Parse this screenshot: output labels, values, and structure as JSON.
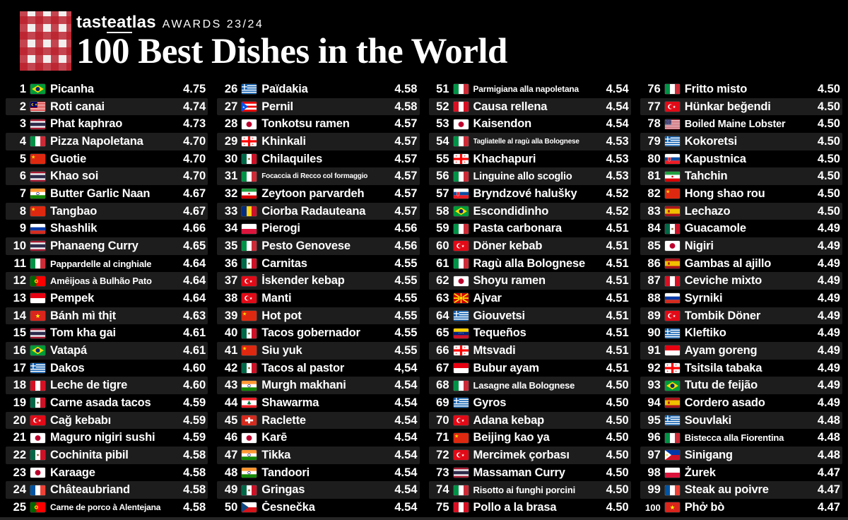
{
  "header": {
    "brand": {
      "pre": "tast",
      "eat": "eat",
      "post": "las"
    },
    "awards_label": "AWARDS 23/24",
    "title": "100 Best Dishes in the World"
  },
  "colors": {
    "background": "#000000",
    "row_stripe": "#1d1d1d",
    "text": "#ffffff",
    "logo_red": "#ba202c"
  },
  "list": [
    {
      "rank": "1",
      "flag": "brazil",
      "name": "Picanha",
      "score": "4.75"
    },
    {
      "rank": "2",
      "flag": "malaysia",
      "name": "Roti canai",
      "score": "4.74"
    },
    {
      "rank": "3",
      "flag": "thailand",
      "name": "Phat kaphrao",
      "score": "4.73"
    },
    {
      "rank": "4",
      "flag": "italy",
      "name": "Pizza Napoletana",
      "score": "4.70"
    },
    {
      "rank": "5",
      "flag": "china",
      "name": "Guotie",
      "score": "4.70"
    },
    {
      "rank": "6",
      "flag": "thailand",
      "name": "Khao soi",
      "score": "4.70"
    },
    {
      "rank": "7",
      "flag": "india",
      "name": "Butter Garlic Naan",
      "score": "4.67"
    },
    {
      "rank": "8",
      "flag": "china",
      "name": "Tangbao",
      "score": "4.67"
    },
    {
      "rank": "9",
      "flag": "russia",
      "name": "Shashlik",
      "score": "4.66"
    },
    {
      "rank": "10",
      "flag": "thailand",
      "name": "Phanaeng Curry",
      "score": "4.65"
    },
    {
      "rank": "11",
      "flag": "italy",
      "name": "Pappardelle al cinghiale",
      "score": "4.64"
    },
    {
      "rank": "12",
      "flag": "portugal",
      "name": "Amêijoas à Bulhão Pato",
      "score": "4.64"
    },
    {
      "rank": "13",
      "flag": "indonesia",
      "name": "Pempek",
      "score": "4.64"
    },
    {
      "rank": "14",
      "flag": "vietnam",
      "name": "Bánh mì thịt",
      "score": "4.63"
    },
    {
      "rank": "15",
      "flag": "thailand",
      "name": "Tom kha gai",
      "score": "4.61"
    },
    {
      "rank": "16",
      "flag": "brazil",
      "name": "Vatapá",
      "score": "4.61"
    },
    {
      "rank": "17",
      "flag": "greece",
      "name": "Dakos",
      "score": "4.60"
    },
    {
      "rank": "18",
      "flag": "peru",
      "name": "Leche de tigre",
      "score": "4.60"
    },
    {
      "rank": "19",
      "flag": "mexico",
      "name": "Carne asada tacos",
      "score": "4.59"
    },
    {
      "rank": "20",
      "flag": "turkey",
      "name": "Cağ kebabı",
      "score": "4.59"
    },
    {
      "rank": "21",
      "flag": "japan",
      "name": "Maguro nigiri sushi",
      "score": "4.59"
    },
    {
      "rank": "22",
      "flag": "mexico",
      "name": "Cochinita pibil",
      "score": "4.58"
    },
    {
      "rank": "23",
      "flag": "japan",
      "name": "Karaage",
      "score": "4.58"
    },
    {
      "rank": "24",
      "flag": "france",
      "name": "Châteaubriand",
      "score": "4.58"
    },
    {
      "rank": "25",
      "flag": "portugal",
      "name": "Carne de porco à Alentejana",
      "score": "4.58"
    },
    {
      "rank": "26",
      "flag": "greece",
      "name": "Païdakia",
      "score": "4.58"
    },
    {
      "rank": "27",
      "flag": "puerto-rico",
      "name": "Pernil",
      "score": "4.58"
    },
    {
      "rank": "28",
      "flag": "japan",
      "name": "Tonkotsu ramen",
      "score": "4.57"
    },
    {
      "rank": "29",
      "flag": "georgia",
      "name": "Khinkali",
      "score": "4.57"
    },
    {
      "rank": "30",
      "flag": "mexico",
      "name": "Chilaquiles",
      "score": "4.57"
    },
    {
      "rank": "31",
      "flag": "italy",
      "name": "Focaccia di Recco col formaggio",
      "score": "4.57"
    },
    {
      "rank": "32",
      "flag": "iran",
      "name": "Zeytoon parvardeh",
      "score": "4.57"
    },
    {
      "rank": "33",
      "flag": "romania",
      "name": "Ciorba Radauteana",
      "score": "4.57"
    },
    {
      "rank": "34",
      "flag": "poland",
      "name": "Pierogi",
      "score": "4.56"
    },
    {
      "rank": "35",
      "flag": "italy",
      "name": "Pesto Genovese",
      "score": "4.56"
    },
    {
      "rank": "36",
      "flag": "mexico",
      "name": "Carnitas",
      "score": "4.55"
    },
    {
      "rank": "37",
      "flag": "turkey",
      "name": "İskender kebap",
      "score": "4.55"
    },
    {
      "rank": "38",
      "flag": "turkey",
      "name": "Manti",
      "score": "4.55"
    },
    {
      "rank": "39",
      "flag": "china",
      "name": "Hot pot",
      "score": "4.55"
    },
    {
      "rank": "40",
      "flag": "mexico",
      "name": "Tacos gobernador",
      "score": "4.55"
    },
    {
      "rank": "41",
      "flag": "china",
      "name": "Siu yuk",
      "score": "4.55"
    },
    {
      "rank": "42",
      "flag": "mexico",
      "name": "Tacos al pastor",
      "score": "4,54"
    },
    {
      "rank": "43",
      "flag": "india",
      "name": "Murgh makhani",
      "score": "4.54"
    },
    {
      "rank": "44",
      "flag": "lebanon",
      "name": "Shawarma",
      "score": "4.54"
    },
    {
      "rank": "45",
      "flag": "switzerland",
      "name": "Raclette",
      "score": "4.54"
    },
    {
      "rank": "46",
      "flag": "japan",
      "name": "Karē",
      "score": "4.54"
    },
    {
      "rank": "47",
      "flag": "india",
      "name": "Tikka",
      "score": "4.54"
    },
    {
      "rank": "48",
      "flag": "india",
      "name": "Tandoori",
      "score": "4.54"
    },
    {
      "rank": "49",
      "flag": "mexico",
      "name": "Gringas",
      "score": "4.54"
    },
    {
      "rank": "50",
      "flag": "czechia",
      "name": "Česnečka",
      "score": "4.54"
    },
    {
      "rank": "51",
      "flag": "italy",
      "name": "Parmigiana alla napoletana",
      "score": "4.54"
    },
    {
      "rank": "52",
      "flag": "peru",
      "name": "Causa rellena",
      "score": "4.54"
    },
    {
      "rank": "53",
      "flag": "japan",
      "name": "Kaisendon",
      "score": "4.54"
    },
    {
      "rank": "54",
      "flag": "italy",
      "name": "Tagliatelle al ragù alla Bolognese",
      "score": "4.53"
    },
    {
      "rank": "55",
      "flag": "georgia",
      "name": "Khachapuri",
      "score": "4.53"
    },
    {
      "rank": "56",
      "flag": "italy",
      "name": "Linguine allo scoglio",
      "score": "4.53"
    },
    {
      "rank": "57",
      "flag": "slovakia",
      "name": "Bryndzové halušky",
      "score": "4.52"
    },
    {
      "rank": "58",
      "flag": "brazil",
      "name": "Escondidinho",
      "score": "4.52"
    },
    {
      "rank": "59",
      "flag": "italy",
      "name": "Pasta carbonara",
      "score": "4.51"
    },
    {
      "rank": "60",
      "flag": "turkey",
      "name": "Döner kebab",
      "score": "4.51"
    },
    {
      "rank": "61",
      "flag": "italy",
      "name": "Ragù alla Bolognese",
      "score": "4.51"
    },
    {
      "rank": "62",
      "flag": "japan",
      "name": "Shoyu ramen",
      "score": "4.51"
    },
    {
      "rank": "63",
      "flag": "north-macedonia",
      "name": "Ajvar",
      "score": "4.51"
    },
    {
      "rank": "64",
      "flag": "greece",
      "name": "Giouvetsi",
      "score": "4.51"
    },
    {
      "rank": "65",
      "flag": "venezuela",
      "name": "Tequeños",
      "score": "4.51"
    },
    {
      "rank": "66",
      "flag": "georgia",
      "name": "Mtsvadi",
      "score": "4.51"
    },
    {
      "rank": "67",
      "flag": "indonesia",
      "name": "Bubur ayam",
      "score": "4.51"
    },
    {
      "rank": "68",
      "flag": "italy",
      "name": "Lasagne alla Bolognese",
      "score": "4.50"
    },
    {
      "rank": "69",
      "flag": "greece",
      "name": "Gyros",
      "score": "4.50"
    },
    {
      "rank": "70",
      "flag": "turkey",
      "name": "Adana kebap",
      "score": "4.50"
    },
    {
      "rank": "71",
      "flag": "china",
      "name": "Beijing kao ya",
      "score": "4.50"
    },
    {
      "rank": "72",
      "flag": "turkey",
      "name": "Mercimek çorbası",
      "score": "4.50"
    },
    {
      "rank": "73",
      "flag": "thailand",
      "name": "Massaman Curry",
      "score": "4.50"
    },
    {
      "rank": "74",
      "flag": "italy",
      "name": "Risotto ai funghi porcini",
      "score": "4.50"
    },
    {
      "rank": "75",
      "flag": "peru",
      "name": "Pollo a la brasa",
      "score": "4.50"
    },
    {
      "rank": "76",
      "flag": "italy",
      "name": "Fritto misto",
      "score": "4.50"
    },
    {
      "rank": "77",
      "flag": "turkey",
      "name": "Hünkar beğendi",
      "score": "4.50"
    },
    {
      "rank": "78",
      "flag": "usa",
      "name": "Boiled Maine Lobster",
      "score": "4.50"
    },
    {
      "rank": "79",
      "flag": "greece",
      "name": "Kokoretsi",
      "score": "4.50"
    },
    {
      "rank": "80",
      "flag": "slovakia",
      "name": "Kapustnica",
      "score": "4.50"
    },
    {
      "rank": "81",
      "flag": "iran",
      "name": "Tahchin",
      "score": "4.50"
    },
    {
      "rank": "82",
      "flag": "china",
      "name": "Hong shao rou",
      "score": "4.50"
    },
    {
      "rank": "83",
      "flag": "spain",
      "name": "Lechazo",
      "score": "4.50"
    },
    {
      "rank": "84",
      "flag": "mexico",
      "name": "Guacamole",
      "score": "4.49"
    },
    {
      "rank": "85",
      "flag": "japan",
      "name": "Nigiri",
      "score": "4.49"
    },
    {
      "rank": "86",
      "flag": "spain",
      "name": "Gambas al ajillo",
      "score": "4.49"
    },
    {
      "rank": "87",
      "flag": "peru",
      "name": "Ceviche mixto",
      "score": "4.49"
    },
    {
      "rank": "88",
      "flag": "russia",
      "name": "Syrniki",
      "score": "4.49"
    },
    {
      "rank": "89",
      "flag": "turkey",
      "name": "Tombik Döner",
      "score": "4.49"
    },
    {
      "rank": "90",
      "flag": "greece",
      "name": "Kleftiko",
      "score": "4.49"
    },
    {
      "rank": "91",
      "flag": "indonesia",
      "name": "Ayam goreng",
      "score": "4.49"
    },
    {
      "rank": "92",
      "flag": "georgia",
      "name": "Tsitsila tabaka",
      "score": "4.49"
    },
    {
      "rank": "93",
      "flag": "brazil",
      "name": "Tutu de feijão",
      "score": "4.49"
    },
    {
      "rank": "94",
      "flag": "spain",
      "name": "Cordero asado",
      "score": "4.49"
    },
    {
      "rank": "95",
      "flag": "greece",
      "name": "Souvlaki",
      "score": "4.48"
    },
    {
      "rank": "96",
      "flag": "italy",
      "name": "Bistecca alla Fiorentina",
      "score": "4.48"
    },
    {
      "rank": "97",
      "flag": "philippines",
      "name": "Sinigang",
      "score": "4.48"
    },
    {
      "rank": "98",
      "flag": "poland",
      "name": "Żurek",
      "score": "4.47"
    },
    {
      "rank": "99",
      "flag": "france",
      "name": "Steak au poivre",
      "score": "4.47"
    },
    {
      "rank": "100",
      "flag": "vietnam",
      "name": "Phở bò",
      "score": "4.47"
    }
  ]
}
